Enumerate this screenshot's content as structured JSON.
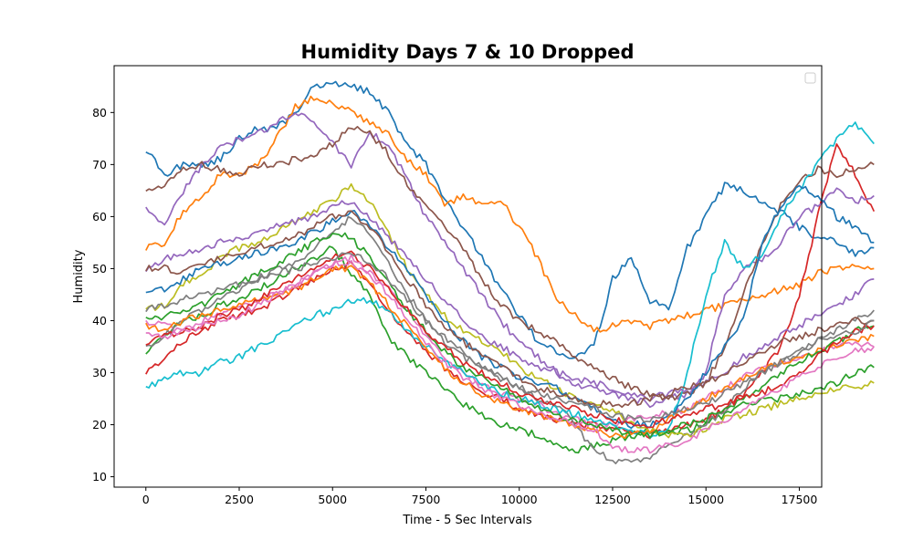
{
  "chart_data": {
    "type": "line",
    "title": "Humidity Days 7 & 10 Dropped",
    "xlabel": "Time - 5 Sec Intervals",
    "ylabel": "Humidity",
    "xlim": [
      -850,
      18100
    ],
    "ylim": [
      8,
      89
    ],
    "xticks": [
      0,
      2500,
      5000,
      7500,
      10000,
      12500,
      15000,
      17500
    ],
    "yticks": [
      10,
      20,
      30,
      40,
      50,
      60,
      70,
      80
    ],
    "grid": false,
    "legend": "top-right",
    "legend_entries": [],
    "x_start": 0,
    "x_step": 500,
    "series": [
      {
        "color": "#1f77b4",
        "values": [
          73,
          68,
          70,
          70,
          71,
          75,
          77,
          77,
          80,
          85,
          86,
          85,
          84,
          80,
          74,
          70,
          63,
          58,
          52,
          46,
          41,
          36,
          34,
          33,
          35,
          48,
          52,
          44,
          42,
          54,
          60,
          66,
          65,
          63,
          61,
          58,
          56,
          55,
          53,
          54
        ]
      },
      {
        "color": "#ff7f0e",
        "values": [
          54,
          55,
          61,
          64,
          68,
          68,
          70,
          75,
          81,
          83,
          82,
          80,
          78,
          76,
          71,
          68,
          62,
          64,
          62,
          63,
          58,
          52,
          44,
          41,
          38,
          39,
          40,
          39,
          40,
          41,
          42,
          43,
          44,
          45,
          46,
          47,
          49,
          50,
          51,
          50
        ]
      },
      {
        "color": "#2ca02c",
        "values": [
          34,
          37,
          40,
          41,
          43,
          44,
          46,
          48,
          50,
          52,
          54,
          49,
          45,
          37,
          33,
          30,
          27,
          24,
          22,
          20,
          19,
          18,
          16,
          15,
          16,
          17,
          18,
          19,
          18,
          19,
          20,
          22,
          24,
          25,
          25,
          26,
          27,
          28,
          30,
          31
        ]
      },
      {
        "color": "#d62728",
        "values": [
          30,
          33,
          36,
          38,
          40,
          41,
          42,
          44,
          46,
          48,
          50,
          51,
          47,
          42,
          38,
          34,
          31,
          28,
          26,
          25,
          23,
          22,
          21,
          20,
          20,
          19,
          19,
          18,
          19,
          20,
          21,
          23,
          26,
          30,
          35,
          45,
          60,
          74,
          68,
          61
        ]
      },
      {
        "color": "#9467bd",
        "values": [
          62,
          58,
          65,
          70,
          73,
          75,
          76,
          78,
          80,
          78,
          74,
          70,
          76,
          74,
          67,
          60,
          55,
          50,
          45,
          40,
          36,
          33,
          30,
          28,
          27,
          26,
          25,
          24,
          25,
          26,
          30,
          45,
          50,
          52,
          55,
          60,
          62,
          65,
          63,
          64
        ]
      },
      {
        "color": "#8c564b",
        "values": [
          65,
          66,
          69,
          70,
          69,
          68,
          70,
          70,
          71,
          72,
          74,
          77,
          76,
          72,
          66,
          62,
          58,
          54,
          48,
          43,
          40,
          38,
          36,
          33,
          31,
          29,
          27,
          26,
          25,
          26,
          28,
          35,
          45,
          55,
          62,
          67,
          69,
          68,
          69,
          70
        ]
      },
      {
        "color": "#e377c2",
        "values": [
          40,
          39,
          38,
          40,
          41,
          43,
          44,
          45,
          47,
          49,
          51,
          51,
          49,
          46,
          42,
          37,
          33,
          30,
          28,
          26,
          25,
          24,
          22,
          21,
          20,
          20,
          21,
          22,
          22,
          23,
          25,
          27,
          29,
          31,
          32,
          33,
          34,
          35,
          36,
          35
        ]
      },
      {
        "color": "#7f7f7f",
        "values": [
          35,
          37,
          40,
          42,
          44,
          46,
          48,
          50,
          51,
          54,
          57,
          60,
          57,
          51,
          45,
          40,
          36,
          33,
          31,
          29,
          27,
          25,
          24,
          20,
          15,
          13,
          13,
          14,
          16,
          18,
          20,
          23,
          27,
          30,
          32,
          34,
          36,
          38,
          40,
          42
        ]
      },
      {
        "color": "#bcbd22",
        "values": [
          42,
          43,
          47,
          49,
          52,
          54,
          55,
          57,
          59,
          61,
          63,
          66,
          63,
          57,
          50,
          45,
          41,
          38,
          36,
          34,
          31,
          29,
          27,
          25,
          24,
          23,
          20,
          19,
          18,
          18,
          19,
          21,
          22,
          23,
          24,
          25,
          26,
          27,
          27,
          28
        ]
      },
      {
        "color": "#17becf",
        "values": [
          27,
          29,
          30,
          30,
          32,
          33,
          35,
          37,
          39,
          41,
          42,
          44,
          44,
          42,
          38,
          35,
          32,
          30,
          28,
          26,
          25,
          24,
          23,
          22,
          21,
          20,
          19,
          18,
          19,
          30,
          45,
          55,
          50,
          53,
          60,
          65,
          70,
          75,
          78,
          74
        ]
      },
      {
        "color": "#1f77b4",
        "values": [
          45,
          46,
          48,
          50,
          51,
          52,
          53,
          54,
          55,
          57,
          59,
          61,
          58,
          54,
          50,
          45,
          40,
          36,
          33,
          31,
          29,
          28,
          27,
          25,
          23,
          21,
          20,
          20,
          22,
          25,
          30,
          35,
          40,
          55,
          62,
          66,
          64,
          60,
          58,
          55
        ]
      },
      {
        "color": "#ff7f0e",
        "values": [
          39,
          38,
          40,
          41,
          42,
          43,
          44,
          45,
          46,
          48,
          50,
          50,
          47,
          43,
          39,
          35,
          31,
          28,
          26,
          24,
          23,
          22,
          21,
          20,
          19,
          18,
          18,
          19,
          21,
          23,
          25,
          27,
          29,
          31,
          32,
          33,
          34,
          35,
          36,
          37
        ]
      },
      {
        "color": "#2ca02c",
        "values": [
          40,
          41,
          42,
          43,
          45,
          47,
          49,
          51,
          53,
          55,
          57,
          56,
          52,
          47,
          42,
          38,
          34,
          31,
          29,
          27,
          25,
          23,
          22,
          21,
          20,
          19,
          18,
          18,
          19,
          20,
          21,
          23,
          25,
          27,
          30,
          32,
          34,
          36,
          38,
          39
        ]
      },
      {
        "color": "#d62728",
        "values": [
          36,
          37,
          38,
          39,
          41,
          42,
          44,
          46,
          48,
          50,
          52,
          53,
          50,
          46,
          42,
          38,
          35,
          32,
          30,
          28,
          26,
          25,
          24,
          23,
          22,
          21,
          20,
          20,
          21,
          22,
          23,
          24,
          25,
          26,
          28,
          30,
          33,
          36,
          38,
          39
        ]
      },
      {
        "color": "#9467bd",
        "values": [
          50,
          52,
          53,
          54,
          55,
          56,
          57,
          58,
          59,
          60,
          62,
          63,
          60,
          56,
          52,
          48,
          44,
          40,
          37,
          35,
          33,
          31,
          30,
          29,
          28,
          27,
          26,
          25,
          26,
          27,
          28,
          30,
          33,
          35,
          37,
          39,
          41,
          43,
          45,
          48
        ]
      },
      {
        "color": "#8c564b",
        "values": [
          50,
          50,
          49,
          51,
          52,
          53,
          54,
          55,
          56,
          58,
          60,
          61,
          58,
          53,
          48,
          43,
          39,
          36,
          33,
          31,
          29,
          27,
          26,
          25,
          24,
          24,
          24,
          25,
          26,
          27,
          28,
          30,
          32,
          34,
          36,
          37,
          38,
          39,
          40,
          40
        ]
      },
      {
        "color": "#e377c2",
        "values": [
          38,
          37,
          38,
          39,
          40,
          41,
          43,
          45,
          47,
          49,
          51,
          52,
          49,
          45,
          40,
          36,
          32,
          29,
          27,
          25,
          24,
          22,
          21,
          20,
          19,
          16,
          15,
          15,
          16,
          17,
          19,
          21,
          23,
          25,
          27,
          29,
          31,
          33,
          34,
          35
        ]
      },
      {
        "color": "#7f7f7f",
        "values": [
          42,
          43,
          44,
          45,
          46,
          47,
          48,
          49,
          50,
          51,
          52,
          53,
          51,
          48,
          44,
          40,
          37,
          34,
          31,
          29,
          27,
          26,
          25,
          24,
          23,
          22,
          21,
          21,
          22,
          23,
          24,
          26,
          28,
          30,
          32,
          34,
          36,
          37,
          38,
          40
        ]
      }
    ]
  }
}
